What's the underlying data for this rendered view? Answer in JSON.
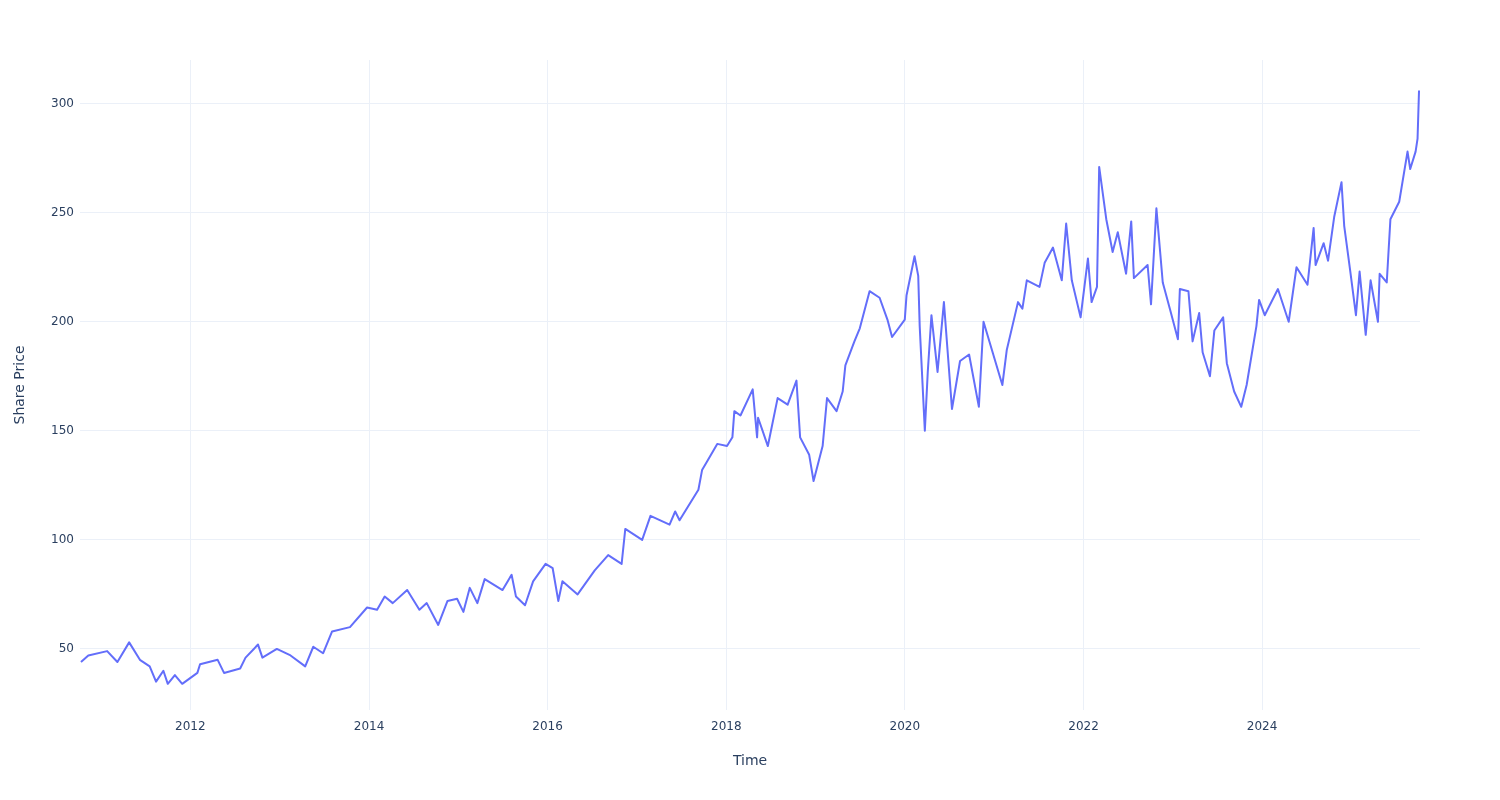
{
  "chart_data": {
    "type": "line",
    "xlabel": "Time",
    "ylabel": "Share Price",
    "grid": true,
    "legend": false,
    "xlim": [
      "2010-10-07",
      "2025-10-08"
    ],
    "xticks": [
      "2012",
      "2014",
      "2016",
      "2018",
      "2020",
      "2022",
      "2024"
    ],
    "ylim": [
      22,
      320
    ],
    "yticks": [
      50,
      100,
      150,
      200,
      250,
      300
    ],
    "x": [
      "2010-10-11",
      "2010-11-10",
      "2011-01-26",
      "2011-03-09",
      "2011-04-26",
      "2011-06-09",
      "2011-07-19",
      "2011-08-14",
      "2011-09-13",
      "2011-10-01",
      "2011-10-30",
      "2011-11-29",
      "2012-01-30",
      "2012-02-10",
      "2012-04-22",
      "2012-05-18",
      "2012-07-23",
      "2012-08-14",
      "2012-10-04",
      "2012-10-22",
      "2012-12-20",
      "2013-02-14",
      "2013-04-15",
      "2013-05-18",
      "2013-06-27",
      "2013-08-03",
      "2013-10-15",
      "2013-12-24",
      "2014-02-03",
      "2014-03-06",
      "2014-04-08",
      "2014-06-06",
      "2014-07-26",
      "2014-08-25",
      "2014-10-11",
      "2014-11-18",
      "2014-12-27",
      "2015-01-22",
      "2015-02-17",
      "2015-03-20",
      "2015-04-19",
      "2015-07-01",
      "2015-08-07",
      "2015-08-25",
      "2015-10-01",
      "2015-11-03",
      "2015-12-24",
      "2016-01-22",
      "2016-02-14",
      "2016-03-02",
      "2016-05-03",
      "2016-07-12",
      "2016-09-05",
      "2016-10-30",
      "2016-11-14",
      "2017-01-22",
      "2017-02-25",
      "2017-05-14",
      "2017-06-06",
      "2017-06-24",
      "2017-09-09",
      "2017-09-24",
      "2017-10-15",
      "2017-11-25",
      "2018-01-04",
      "2018-01-26",
      "2018-02-03",
      "2018-02-28",
      "2018-04-19",
      "2018-05-07",
      "2018-05-11",
      "2018-06-20",
      "2018-07-30",
      "2018-09-09",
      "2018-10-15",
      "2018-10-30",
      "2018-12-06",
      "2018-12-24",
      "2019-01-30",
      "2019-02-17",
      "2019-03-28",
      "2019-04-22",
      "2019-05-03",
      "2019-06-09",
      "2019-07-01",
      "2019-08-10",
      "2019-09-20",
      "2019-10-22",
      "2019-11-10",
      "2020-01-01",
      "2020-01-08",
      "2020-02-10",
      "2020-02-25",
      "2020-03-02",
      "2020-03-23",
      "2020-04-04",
      "2020-04-19",
      "2020-05-14",
      "2020-06-09",
      "2020-07-12",
      "2020-08-14",
      "2020-09-20",
      "2020-10-30",
      "2020-11-18",
      "2021-02-03",
      "2021-02-21",
      "2021-03-16",
      "2021-04-08",
      "2021-04-26",
      "2021-05-14",
      "2021-07-05",
      "2021-07-26",
      "2021-08-29",
      "2021-10-04",
      "2021-10-22",
      "2021-11-14",
      "2021-12-20",
      "2022-01-19",
      "2022-02-03",
      "2022-02-25",
      "2022-03-06",
      "2022-04-04",
      "2022-04-30",
      "2022-05-21",
      "2022-06-24",
      "2022-07-15",
      "2022-07-26",
      "2022-09-20",
      "2022-10-04",
      "2022-10-26",
      "2022-11-21",
      "2022-12-20",
      "2023-01-22",
      "2023-01-30",
      "2023-03-06",
      "2023-03-23",
      "2023-04-19",
      "2023-05-03",
      "2023-06-02",
      "2023-06-20",
      "2023-07-26",
      "2023-08-10",
      "2023-09-09",
      "2023-10-08",
      "2023-10-30",
      "2023-12-09",
      "2023-12-20",
      "2024-01-12",
      "2024-03-06",
      "2024-04-19",
      "2024-05-21",
      "2024-07-05",
      "2024-07-30",
      "2024-08-07",
      "2024-09-09",
      "2024-09-27",
      "2024-10-22",
      "2024-11-21",
      "2024-12-02",
      "2024-12-27",
      "2025-01-19",
      "2025-02-03",
      "2025-02-28",
      "2025-03-20",
      "2025-04-19",
      "2025-04-26",
      "2025-05-25",
      "2025-06-09",
      "2025-07-15",
      "2025-08-18",
      "2025-08-29",
      "2025-09-20",
      "2025-09-28",
      "2025-10-04"
    ],
    "series": [
      {
        "color": "#636efa",
        "values": [
          44,
          47,
          49,
          44,
          53,
          45,
          42,
          35,
          40,
          34,
          38,
          34,
          39,
          43,
          45,
          39,
          41,
          46,
          52,
          46,
          50,
          47,
          42,
          51,
          48,
          58,
          60,
          69,
          68,
          74,
          71,
          77,
          68,
          71,
          61,
          72,
          73,
          67,
          78,
          71,
          82,
          77,
          84,
          74,
          70,
          81,
          89,
          87,
          72,
          81,
          75,
          86,
          93,
          89,
          105,
          100,
          111,
          107,
          113,
          109,
          123,
          132,
          136,
          144,
          143,
          147,
          159,
          157,
          169,
          147,
          156,
          143,
          165,
          162,
          173,
          147,
          139,
          127,
          143,
          165,
          159,
          168,
          180,
          191,
          197,
          214,
          211,
          201,
          193,
          201,
          212,
          230,
          221,
          198,
          150,
          177,
          203,
          177,
          209,
          160,
          182,
          185,
          161,
          200,
          171,
          187,
          198,
          209,
          206,
          219,
          216,
          227,
          234,
          219,
          245,
          219,
          202,
          229,
          209,
          216,
          271,
          247,
          232,
          241,
          222,
          246,
          220,
          226,
          208,
          252,
          218,
          206,
          192,
          215,
          214,
          191,
          204,
          186,
          175,
          196,
          202,
          181,
          168,
          161,
          171,
          198,
          210,
          203,
          215,
          200,
          225,
          217,
          243,
          226,
          236,
          228,
          248,
          264,
          244,
          223,
          203,
          223,
          194,
          219,
          200,
          222,
          218,
          247,
          255,
          278,
          270,
          278,
          284,
          306
        ]
      }
    ]
  }
}
